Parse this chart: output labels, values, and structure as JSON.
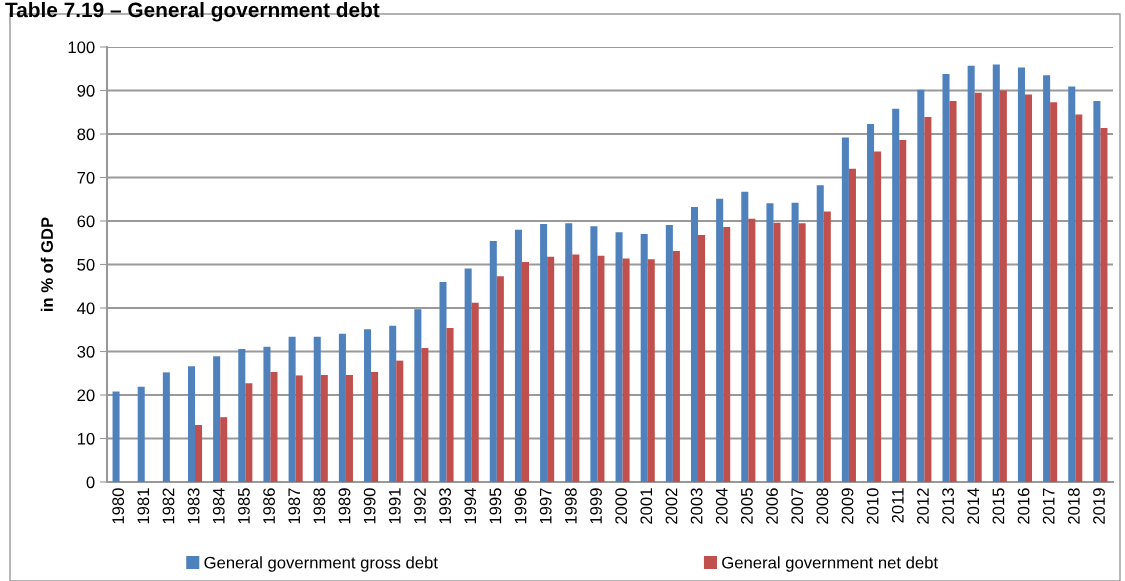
{
  "chart_data": {
    "type": "bar",
    "title": "Table 7.19 – General government debt",
    "ylabel": "in % of GDP",
    "categories": [
      "1980",
      "1981",
      "1982",
      "1983",
      "1984",
      "1985",
      "1986",
      "1987",
      "1988",
      "1989",
      "1990",
      "1991",
      "1992",
      "1993",
      "1994",
      "1995",
      "1996",
      "1997",
      "1998",
      "1999",
      "2000",
      "2001",
      "2002",
      "2003",
      "2004",
      "2005",
      "2006",
      "2007",
      "2008",
      "2009",
      "2010",
      "2011",
      "2012",
      "2013",
      "2014",
      "2015",
      "2016",
      "2017",
      "2018",
      "2019"
    ],
    "series": [
      {
        "name": "General government gross debt",
        "color": "#4f81bd",
        "values": [
          20.8,
          21.9,
          25.2,
          26.6,
          28.9,
          30.6,
          31.1,
          33.4,
          33.4,
          34.1,
          35.1,
          35.9,
          39.7,
          46.0,
          49.1,
          55.4,
          58.0,
          59.3,
          59.5,
          58.8,
          57.4,
          57.0,
          59.1,
          63.2,
          65.1,
          66.7,
          64.1,
          64.2,
          68.2,
          79.2,
          82.3,
          85.8,
          90.2,
          93.8,
          95.7,
          96.0,
          95.3,
          93.5,
          90.9,
          87.6
        ]
      },
      {
        "name": "General government net debt",
        "color": "#c0504d",
        "values": [
          null,
          null,
          null,
          13.1,
          14.9,
          22.7,
          25.3,
          24.5,
          24.6,
          24.6,
          25.3,
          27.9,
          30.8,
          35.4,
          41.2,
          47.3,
          50.6,
          51.8,
          52.3,
          52.0,
          51.4,
          51.2,
          53.1,
          56.8,
          58.6,
          60.5,
          59.6,
          59.5,
          62.2,
          72.0,
          76.0,
          78.6,
          83.9,
          87.6,
          89.5,
          90.0,
          89.1,
          87.3,
          84.5,
          81.4
        ]
      }
    ],
    "ylim": [
      0,
      100
    ],
    "yticks": [
      0,
      10,
      20,
      30,
      40,
      50,
      60,
      70,
      80,
      90,
      100
    ],
    "grid": "y",
    "legend": "bottom"
  }
}
